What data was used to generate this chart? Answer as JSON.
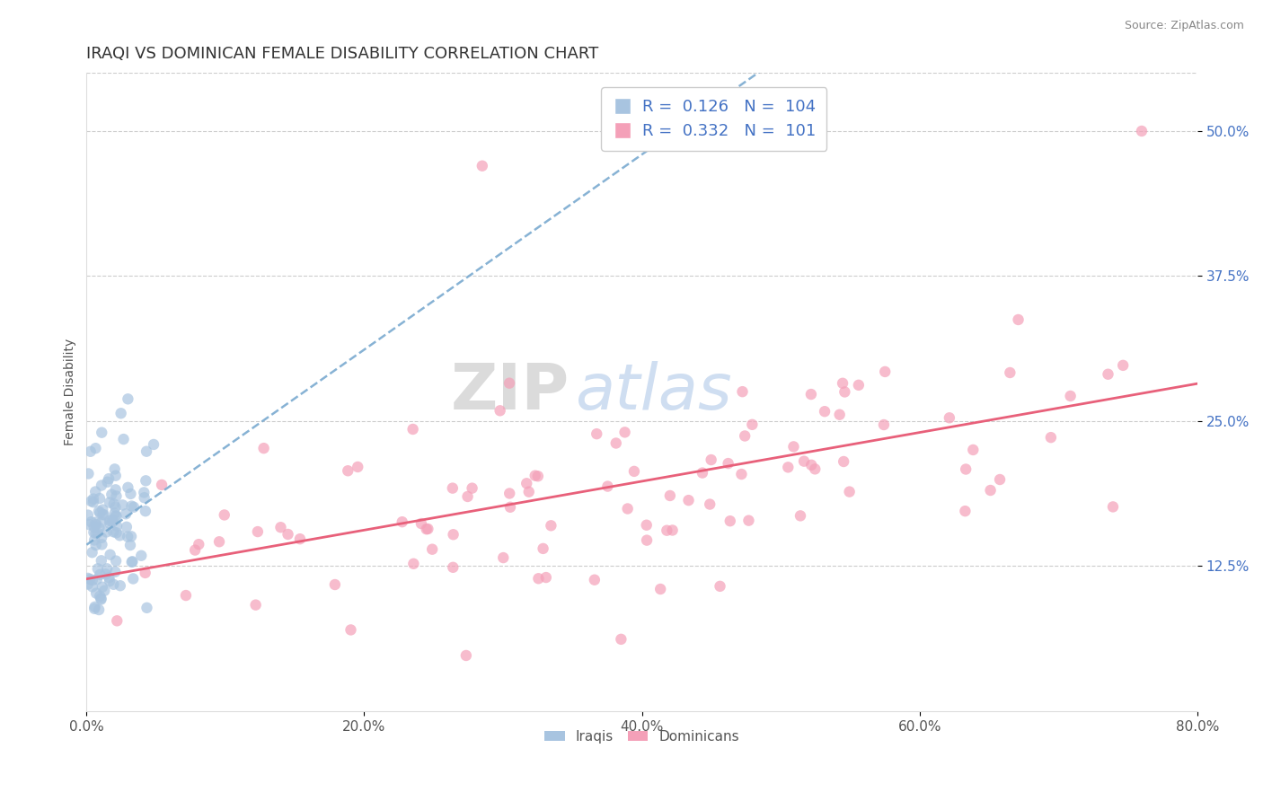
{
  "title": "IRAQI VS DOMINICAN FEMALE DISABILITY CORRELATION CHART",
  "source": "Source: ZipAtlas.com",
  "ylabel": "Female Disability",
  "xlabel": "",
  "xlim": [
    0.0,
    0.8
  ],
  "ylim": [
    0.0,
    0.55
  ],
  "xticks": [
    0.0,
    0.2,
    0.4,
    0.6,
    0.8
  ],
  "xtick_labels": [
    "0.0%",
    "20.0%",
    "40.0%",
    "60.0%",
    "80.0%"
  ],
  "ytick_positions": [
    0.125,
    0.25,
    0.375,
    0.5
  ],
  "ytick_labels": [
    "12.5%",
    "25.0%",
    "37.5%",
    "50.0%"
  ],
  "iraqi_color": "#a8c4e0",
  "dominican_color": "#f4a0b8",
  "iraqi_line_color": "#7aaad0",
  "dominican_line_color": "#e8607a",
  "legend_R1": "0.126",
  "legend_N1": "104",
  "legend_R2": "0.332",
  "legend_N2": "101",
  "R_color": "#4472c4",
  "title_color": "#333333",
  "label_color": "#555555",
  "tick_color": "#555555",
  "watermark_zip": "ZIP",
  "watermark_atlas": "atlas",
  "background_color": "#ffffff",
  "grid_color": "#cccccc",
  "iraqi_seed": 42,
  "dominican_seed": 123
}
